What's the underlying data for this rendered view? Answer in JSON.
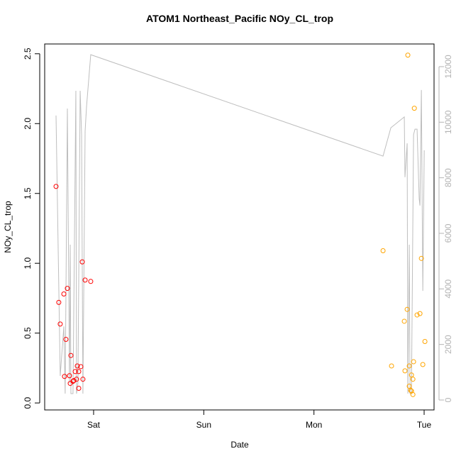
{
  "chart_data": {
    "type": "scatter",
    "title": "ATOM1 Northeast_Pacific NOy_CL_trop",
    "x_label": "Date",
    "y_label": "NOy_CL_trop",
    "x": [
      0.659,
      0.684,
      0.697,
      0.73,
      0.736,
      0.749,
      0.762,
      0.781,
      0.788,
      0.794,
      0.813,
      0.82,
      0.833,
      0.845,
      0.852,
      0.865,
      0.865,
      0.884,
      0.897,
      0.903,
      0.923,
      0.974,
      3.627,
      3.704,
      3.82,
      3.826,
      3.846,
      3.852,
      3.865,
      3.865,
      3.878,
      3.885,
      3.885,
      3.898,
      3.904,
      3.898,
      3.911,
      3.936,
      3.962,
      3.975,
      3.988,
      4.007
    ],
    "series": [
      {
        "color": "#ff0000",
        "values": [
          1.55,
          0.72,
          0.565,
          0.78,
          0.19,
          0.455,
          0.82,
          0.195,
          0.14,
          0.34,
          0.155,
          0.16,
          0.225,
          0.17,
          0.265,
          0.225,
          0.105,
          0.26,
          1.01,
          0.17,
          0.88,
          0.87,
          null,
          null,
          null,
          null,
          null,
          null,
          null,
          null,
          null,
          null,
          null,
          null,
          null,
          null,
          null,
          null,
          null,
          null,
          null,
          null
        ]
      },
      {
        "color": "#ffa500",
        "values": [
          null,
          null,
          null,
          null,
          null,
          null,
          null,
          null,
          null,
          null,
          null,
          null,
          null,
          null,
          null,
          null,
          null,
          null,
          null,
          null,
          null,
          null,
          1.09,
          0.265,
          0.585,
          0.23,
          0.67,
          2.49,
          0.265,
          0.12,
          0.09,
          0.2,
          0.085,
          0.06,
          0.295,
          0.17,
          2.11,
          0.63,
          0.64,
          1.035,
          0.275,
          0.44
        ]
      },
      {
        "color": "#bebebe",
        "axis": "y2",
        "line": true,
        "x": [
          0.659,
          0.697,
          0.73,
          0.742,
          0.762,
          0.781,
          0.788,
          0.794,
          0.813,
          0.839,
          0.845,
          0.858,
          0.878,
          0.891,
          0.903,
          0.923,
          0.936,
          0.974,
          3.627,
          3.698,
          3.82,
          3.826,
          3.846,
          3.852,
          3.865,
          3.872,
          3.885,
          3.904,
          3.917,
          3.936,
          3.955,
          3.962,
          3.975,
          3.988,
          4.001
        ],
        "values": [
          10240,
          870,
          2650,
          230,
          10490,
          610,
          5590,
          230,
          230,
          11130,
          230,
          610,
          11130,
          9550,
          230,
          9680,
          10570,
          12430,
          8780,
          9800,
          10190,
          8020,
          9240,
          230,
          5590,
          230,
          230,
          9550,
          9750,
          9750,
          7250,
          7000,
          11160,
          3930,
          8990
        ]
      }
    ],
    "xlim": [
      0.556,
      4.09
    ],
    "xticks": [
      {
        "value": 1,
        "label": "Sat"
      },
      {
        "value": 2,
        "label": "Sun"
      },
      {
        "value": 3,
        "label": "Mon"
      },
      {
        "value": 4,
        "label": "Tue"
      }
    ],
    "ylim": [
      -0.05,
      2.57
    ],
    "yticks": [
      {
        "value": 0,
        "label": "0.0"
      },
      0.5,
      {
        "value": 1,
        "label": "1.0"
      },
      1.5,
      {
        "value": 2,
        "label": "2.0"
      },
      2.5
    ],
    "y2lim": [
      -357,
      12816
    ],
    "y2ticks": [
      0,
      2000,
      4000,
      6000,
      8000,
      10000,
      12000
    ],
    "y2color": "#b3b3b3"
  }
}
